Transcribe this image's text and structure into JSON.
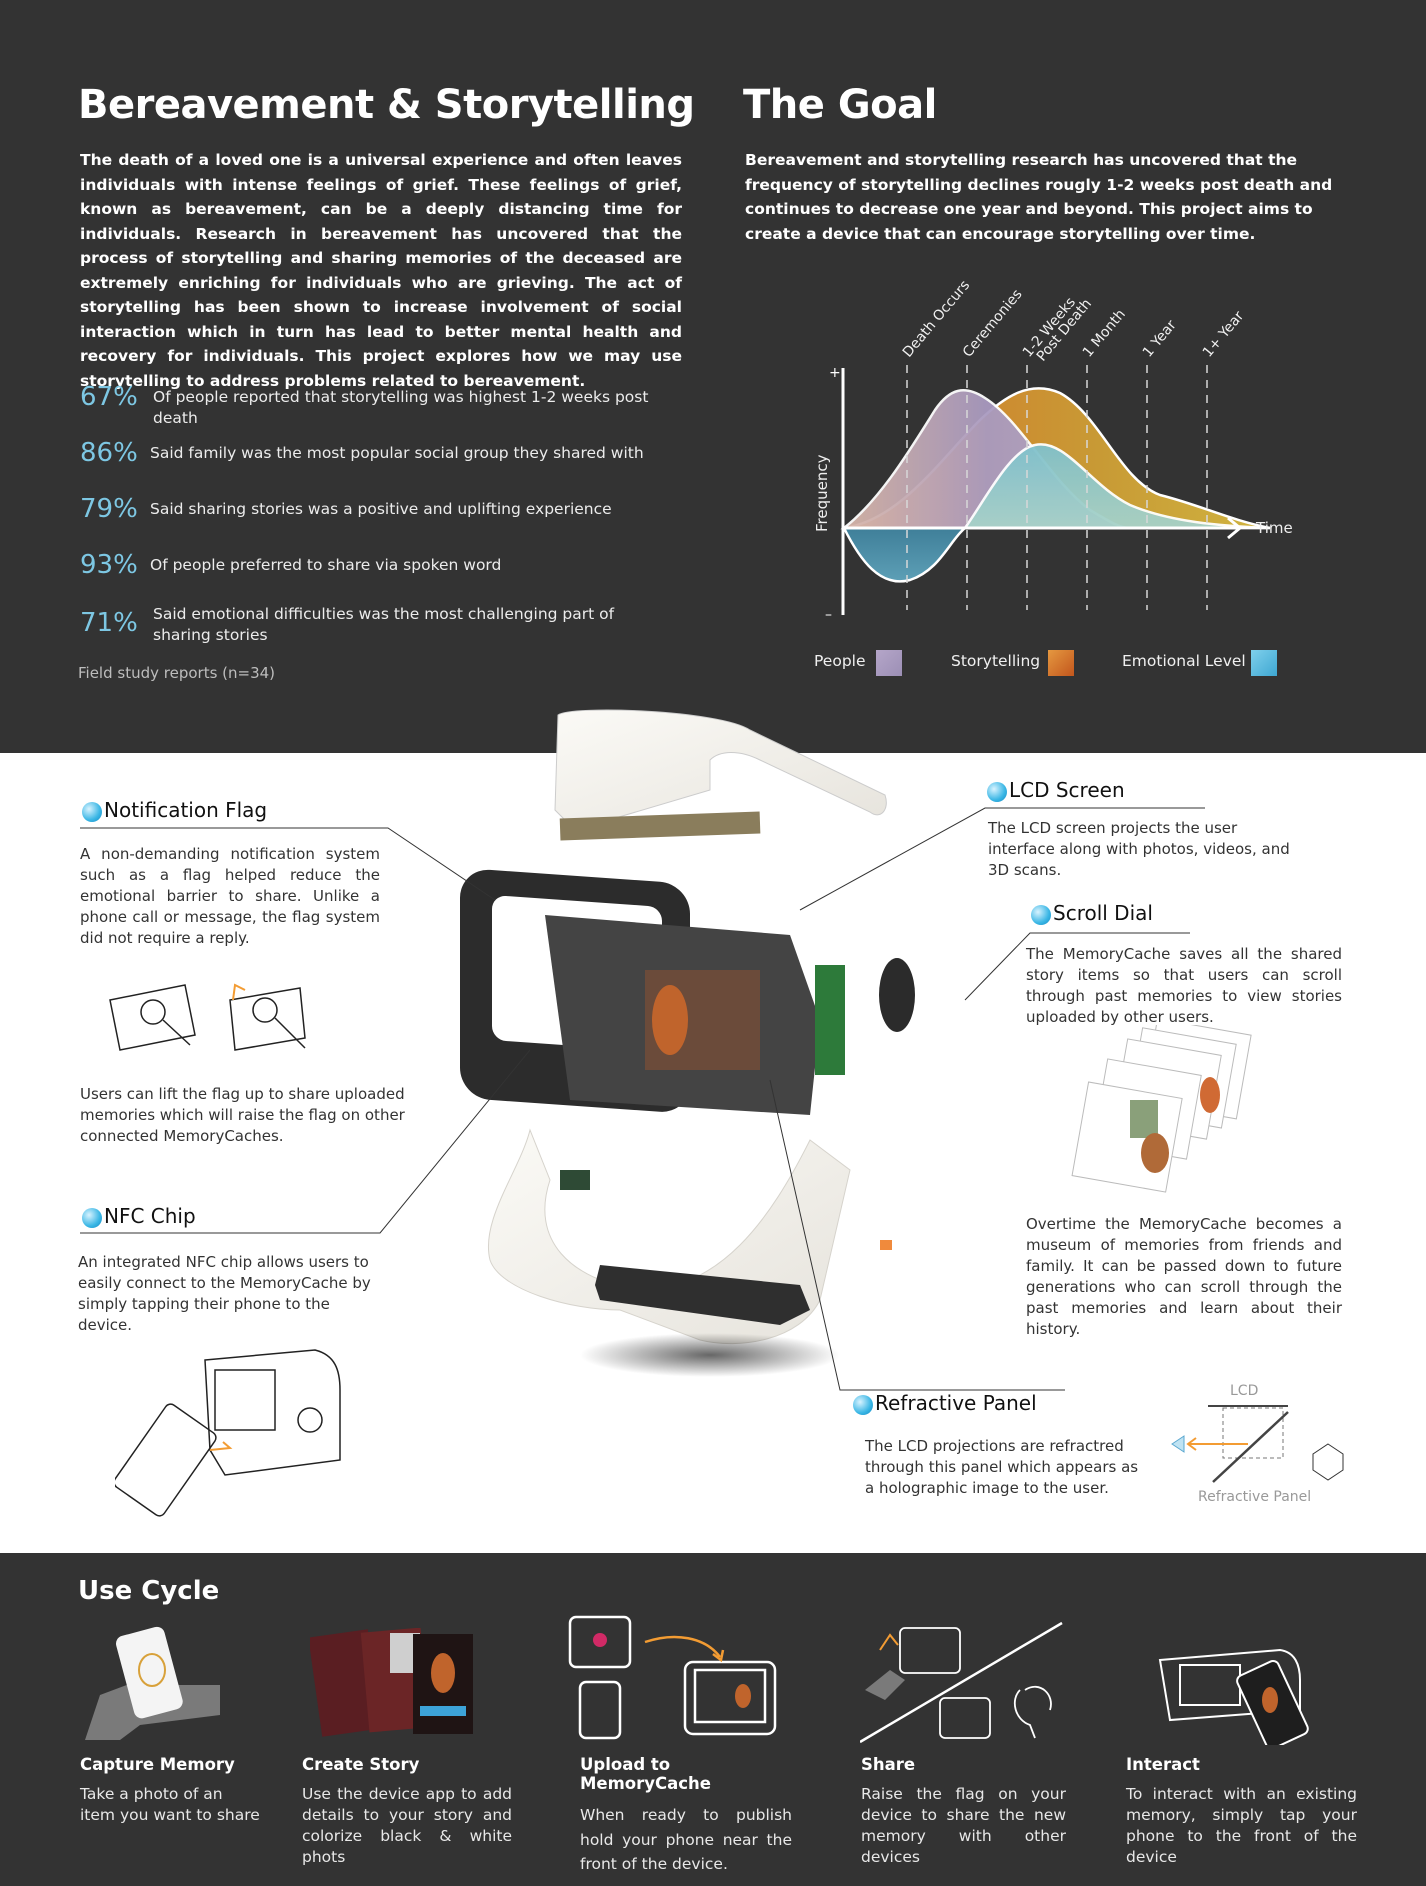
{
  "bereavement": {
    "title": "Bereavement & Storytelling",
    "body": "The death of a loved one is a universal experience and often leaves individuals with intense feelings of grief. These feelings of grief, known as bereavement, can be a deeply distancing time for individuals.  Research in bereavement has uncovered that the process of storytelling and sharing memories of the deceased are extremely enriching for individuals who are grieving. The act of storytelling has been shown to increase involvement of social interaction which in turn has lead to better mental health and recovery for individuals. This project explores how we may use storytelling to address problems related to bereavement.",
    "stats": [
      {
        "value": "67%",
        "text": "Of people reported that storytelling was highest 1-2 weeks post death"
      },
      {
        "value": "86%",
        "text": "Said family was the most popular social group they shared with"
      },
      {
        "value": "79%",
        "text": "Said sharing stories was a positive and uplifting experience"
      },
      {
        "value": "93%",
        "text": "Of people preferred to share via spoken word"
      },
      {
        "value": "71%",
        "text": "Said emotional difficulties was the most challenging part of sharing stories"
      }
    ],
    "footnote": "Field study reports (n=34)"
  },
  "goal": {
    "title": "The Goal",
    "body": "Bereavement and storytelling research  has uncovered that the frequency of storytelling declines rougly 1-2 weeks post death and continues to decrease one year and beyond. This project aims to create a device that can encourage storytelling over time."
  },
  "chart_data": {
    "type": "area",
    "ylabel": "Frequency",
    "xlabel": "Time",
    "y_plus": "+",
    "y_minus": "–",
    "markers": [
      "Death Occurs",
      "Ceremonies",
      "1-2 Weeks\nPost Death",
      "1 Month",
      "1 Year",
      "1+ Year"
    ],
    "series": [
      {
        "name": "People",
        "color": "#a99ac0"
      },
      {
        "name": "Storytelling",
        "color": "#d4772a"
      },
      {
        "name": "Emotional Level",
        "color": "#5bb4d6"
      }
    ]
  },
  "colors": {
    "dark_bg": "#333333",
    "accent_blue": "#7dc7e3",
    "accent_orange": "#f39c33"
  },
  "features": {
    "notification_flag": {
      "title": "Notification Flag",
      "text": "A non-demanding notification system such as a flag helped reduce the emotional barrier to share. Unlike a phone call or message, the flag system did not require a reply.",
      "text2": "Users can lift the flag up to share uploaded memories which will raise the flag on other connected MemoryCaches."
    },
    "nfc_chip": {
      "title": "NFC Chip",
      "text": "An integrated NFC chip allows users to easily connect to the MemoryCache by simply tapping their phone to the device."
    },
    "lcd_screen": {
      "title": "LCD Screen",
      "text": "The LCD screen projects the user interface along with photos, videos, and 3D scans."
    },
    "scroll_dial": {
      "title": "Scroll Dial",
      "text": "The MemoryCache saves all the shared story items so that users can scroll through past memories to view stories uploaded by other users.",
      "text2": "Overtime the MemoryCache becomes a museum of memories from friends and family. It can be passed down to future generations who can scroll through the past memories and learn about their history."
    },
    "refractive_panel": {
      "title": "Refractive Panel",
      "text": "The LCD projections are refractred through this panel which appears as a holographic image to the user.",
      "diagram_top": "LCD",
      "diagram_bottom": "Refractive Panel"
    }
  },
  "use_cycle": {
    "title": "Use Cycle",
    "steps": [
      {
        "title": "Capture Memory",
        "text": "Take a photo of an item you want to share"
      },
      {
        "title": "Create Story",
        "text": "Use the device app to add details to your story and colorize black & white phots"
      },
      {
        "title": "Upload to MemoryCache",
        "text": "When ready to publish hold your phone near the front of the device."
      },
      {
        "title": "Share",
        "text": "Raise the flag on your device to share the new memory with other devices"
      },
      {
        "title": "Interact",
        "text": "To interact with an existing memory, simply tap your phone to the front of the device"
      }
    ]
  }
}
